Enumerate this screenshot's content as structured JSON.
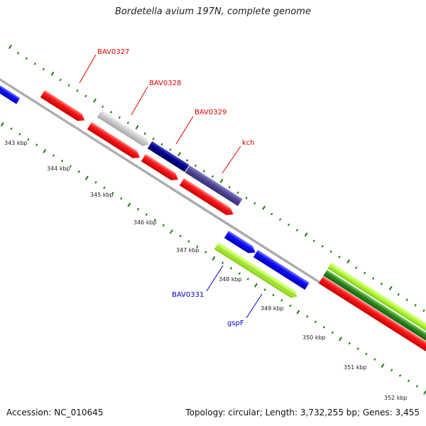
{
  "title": "Bordetella avium 197N, complete genome",
  "footer": {
    "accession": "Accession: NC_010645",
    "summary": "Topology: circular; Length: 3,732,255 bp; Genes: 3,455"
  },
  "kbp_labels": [
    "343 kbp",
    "344 kbp",
    "345 kbp",
    "346 kbp",
    "347 kbp",
    "348 kbp",
    "349 kbp",
    "350 kbp",
    "351 kbp",
    "352 kbp"
  ],
  "gene_labels": {
    "bav0327": "BAV0327",
    "bav0328": "BAV0328",
    "bav0329": "BAV0329",
    "kch": "kch",
    "bav0331": "BAV0331",
    "gspf": "gspF"
  },
  "colors": {
    "red": "#ff0000",
    "blue": "#0000ff",
    "navy": "#000080",
    "slate": "#4b3f8e",
    "gray": "#c8c8c8",
    "green": "#2e8b1e",
    "lime": "#b6ff3c",
    "tick_green": "#1f7a12",
    "label_red": "#dd0000",
    "label_blue": "#0000cc"
  }
}
